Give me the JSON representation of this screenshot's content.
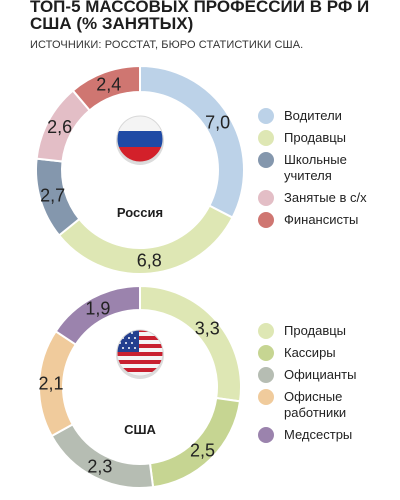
{
  "title": "ТОП-5 МАССОВЫХ ПРОФЕССИЙ В РФ И США (% ЗАНЯТЫХ)",
  "subtitle": "ИСТОЧНИКИ: РОССТАТ, БЮРО СТАТИСТИКИ США.",
  "chart_data": [
    {
      "type": "pie",
      "country": "Россия",
      "flag_icon": "russia-flag-icon",
      "categories": [
        "Водители",
        "Продавцы",
        "Школьные учителя",
        "Занятые в с/х",
        "Финансисты"
      ],
      "values": [
        7.0,
        6.8,
        2.7,
        2.6,
        2.4
      ],
      "value_labels": [
        "7,0",
        "6,8",
        "2,7",
        "2,6",
        "2,4"
      ],
      "legend_labels": [
        "Водители",
        "Продавцы",
        "Школьные\nучителя",
        "Занятые в с/х",
        "Финансисты"
      ],
      "colors": [
        "#bcd2e8",
        "#dee7b4",
        "#8497ad",
        "#e3bec6",
        "#cf7671"
      ],
      "legend_placement": "right"
    },
    {
      "type": "pie",
      "country": "США",
      "flag_icon": "usa-flag-icon",
      "categories": [
        "Продавцы",
        "Кассиры",
        "Официанты",
        "Офисные работники",
        "Медсестры"
      ],
      "values": [
        3.3,
        2.5,
        2.3,
        2.1,
        1.9
      ],
      "value_labels": [
        "3,3",
        "2,5",
        "2,3",
        "2,1",
        "1,9"
      ],
      "legend_labels": [
        "Продавцы",
        "Кассиры",
        "Официанты",
        "Офисные\nработники",
        "Медсестры"
      ],
      "colors": [
        "#dee7b4",
        "#c6d592",
        "#b6bdb3",
        "#f0cb9c",
        "#9b83ad"
      ],
      "legend_placement": "right"
    }
  ]
}
